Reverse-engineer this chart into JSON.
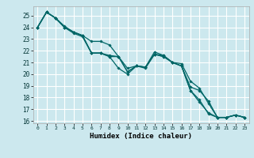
{
  "xlabel": "Humidex (Indice chaleur)",
  "bg_color": "#cce8ee",
  "grid_color": "#ffffff",
  "line_color": "#006666",
  "xlim": [
    -0.5,
    23.5
  ],
  "ylim": [
    15.8,
    25.8
  ],
  "yticks": [
    16,
    17,
    18,
    19,
    20,
    21,
    22,
    23,
    24,
    25
  ],
  "xticks": [
    0,
    1,
    2,
    3,
    4,
    5,
    6,
    7,
    8,
    9,
    10,
    11,
    12,
    13,
    14,
    15,
    16,
    17,
    18,
    19,
    20,
    21,
    22,
    23
  ],
  "series": [
    [
      24.0,
      25.3,
      24.8,
      24.0,
      23.6,
      23.3,
      21.8,
      21.8,
      21.5,
      21.5,
      20.2,
      20.7,
      20.6,
      21.7,
      21.6,
      21.0,
      20.7,
      18.6,
      17.6,
      16.7,
      16.3,
      16.3,
      16.5,
      16.3
    ],
    [
      24.0,
      25.3,
      24.8,
      24.0,
      23.6,
      23.3,
      22.8,
      22.8,
      22.5,
      21.5,
      20.5,
      20.7,
      20.6,
      21.9,
      21.6,
      21.0,
      20.9,
      19.4,
      18.8,
      17.5,
      16.3,
      16.3,
      16.5,
      16.3
    ],
    [
      24.0,
      25.3,
      24.8,
      24.0,
      23.5,
      23.2,
      21.8,
      21.8,
      21.5,
      20.5,
      20.0,
      20.7,
      20.6,
      21.7,
      21.5,
      21.0,
      20.7,
      18.9,
      18.6,
      17.7,
      16.3,
      16.3,
      16.5,
      16.3
    ],
    [
      24.0,
      25.3,
      24.8,
      24.1,
      23.6,
      23.3,
      21.8,
      21.8,
      21.6,
      21.5,
      20.2,
      20.7,
      20.5,
      21.7,
      21.5,
      21.0,
      20.7,
      18.6,
      17.8,
      16.6,
      16.3,
      16.3,
      16.5,
      16.3
    ]
  ]
}
